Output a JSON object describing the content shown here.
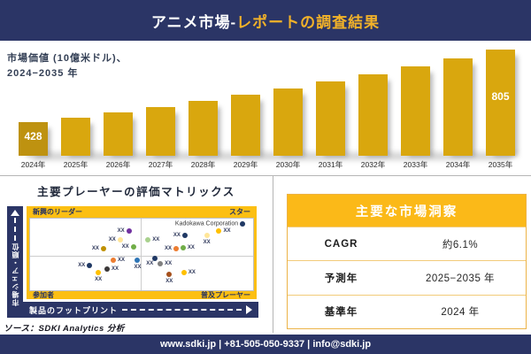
{
  "header": {
    "title_white": "アニメ市場-",
    "title_gold": "レポートの調査結果"
  },
  "bar_header": {
    "line1": "市場価値 (10億米ドル)、",
    "line2": "2024−2035 年"
  },
  "chart_data": [
    {
      "type": "bar",
      "title": "市場価値 (10億米ドル)、2024−2035 年",
      "categories": [
        "2024年",
        "2025年",
        "2026年",
        "2027年",
        "2028年",
        "2029年",
        "2030年",
        "2031年",
        "2032年",
        "2033年",
        "2034年",
        "2035年"
      ],
      "values": [
        428,
        453,
        480,
        508,
        538,
        570,
        604,
        639,
        677,
        717,
        759,
        805
      ],
      "value_labels": {
        "0": "428",
        "11": "805"
      },
      "xlabel": "",
      "ylabel": "市場価値 (10億米ドル)",
      "ylim": [
        380,
        820
      ],
      "grid": false,
      "bar_color": "#D9A70E",
      "first_bar_color": "#BE9210"
    },
    {
      "type": "scatter",
      "title": "主要プレーヤーの評価マトリックス",
      "xlabel": "製品のフットプリント",
      "ylabel": "市場シェア・順位",
      "quadrants": {
        "top_left": "新興のリーダー",
        "top_right": "スター",
        "bottom_left": "参加者",
        "bottom_right": "普及プレーヤー"
      },
      "points": [
        {
          "x": 44.3,
          "y": 83.3,
          "color": "#7030A0",
          "label": "XX",
          "label_pos": "left"
        },
        {
          "x": 40.4,
          "y": 70.2,
          "color": "#FFE699",
          "label": "XX",
          "label_pos": "left"
        },
        {
          "x": 46.3,
          "y": 60.7,
          "color": "#70AD47",
          "label": "XX",
          "label_pos": "left"
        },
        {
          "x": 32.9,
          "y": 58.3,
          "color": "#BF9000",
          "label": "XX",
          "label_pos": "left"
        },
        {
          "x": 95.3,
          "y": 92.9,
          "color": "#1F3864",
          "label": "Kadokawa Corporation",
          "label_pos": "left"
        },
        {
          "x": 52.9,
          "y": 70.2,
          "color": "#A9D18E",
          "label": "XX",
          "label_pos": "right"
        },
        {
          "x": 69.4,
          "y": 76.2,
          "color": "#1F3864",
          "label": "XX",
          "label_pos": "left"
        },
        {
          "x": 79.2,
          "y": 76.2,
          "color": "#FFE699",
          "label": "XX",
          "label_pos": "below"
        },
        {
          "x": 84.7,
          "y": 82.1,
          "color": "#FFC000",
          "label": "XX",
          "label_pos": "right"
        },
        {
          "x": 65.5,
          "y": 58.3,
          "color": "#ED7D31",
          "label": "XX",
          "label_pos": "left"
        },
        {
          "x": 68.6,
          "y": 59.5,
          "color": "#70AD47",
          "label": "XX",
          "label_pos": "right"
        },
        {
          "x": 37.3,
          "y": 41.7,
          "color": "#ED7D31",
          "label": "XX",
          "label_pos": "right"
        },
        {
          "x": 48.2,
          "y": 41.7,
          "color": "#2E75B6",
          "label": "XX",
          "label_pos": "below"
        },
        {
          "x": 26.7,
          "y": 34.5,
          "color": "#1F3864",
          "label": "XX",
          "label_pos": "left"
        },
        {
          "x": 30.6,
          "y": 25.0,
          "color": "#FFC000",
          "label": "XX",
          "label_pos": "below"
        },
        {
          "x": 34.5,
          "y": 29.8,
          "color": "#3B3838",
          "label": "XX",
          "label_pos": "right"
        },
        {
          "x": 56.1,
          "y": 44.0,
          "color": "#1F3864",
          "label": "XX",
          "label_pos": "below-left"
        },
        {
          "x": 58.4,
          "y": 36.9,
          "color": "#7F7F7F",
          "label": "XX",
          "label_pos": "right"
        },
        {
          "x": 62.4,
          "y": 22.6,
          "color": "#A5501C",
          "label": "XX",
          "label_pos": "below"
        },
        {
          "x": 69.0,
          "y": 25.0,
          "color": "#FFC000",
          "label": "XX",
          "label_pos": "right"
        }
      ]
    }
  ],
  "insights": {
    "title": "主要な市場洞察",
    "rows": [
      {
        "label": "CAGR",
        "value": "約6.1%"
      },
      {
        "label": "予測年",
        "value": "2025−2035 年"
      },
      {
        "label": "基準年",
        "value": "2024 年"
      }
    ]
  },
  "source": "ソース：SDKI Analytics 分析",
  "footer": "www.sdki.jp | +81-505-050-9337 | info@sdki.jp",
  "colors": {
    "navy": "#2B3566",
    "gold": "#FCBF13",
    "header_title_gold": "#F2B229",
    "bar_gold": "#D9A70E",
    "bar_first": "#BE9210"
  }
}
